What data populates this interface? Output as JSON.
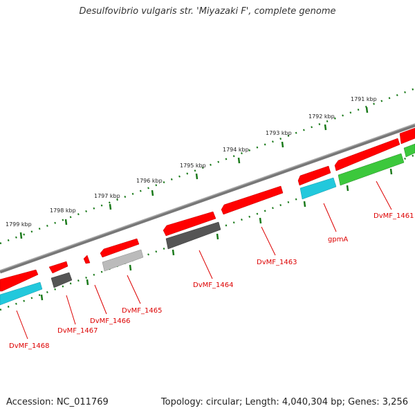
{
  "title": "Desulfovibrio vulgaris str. 'Miyazaki F', complete genome",
  "footer": {
    "accession": "Accession: NC_011769",
    "summary": "Topology: circular; Length: 4,040,304 bp; Genes: 3,256"
  },
  "ruler_labels": [
    "1799 kbp",
    "1798 kbp",
    "1797 kbp",
    "1796 kbp",
    "1795 kbp",
    "1794 kbp",
    "1793 kbp",
    "1792 kbp",
    "1791 kbp"
  ],
  "gene_labels": [
    "DvMF_1468",
    "DvMF_1467",
    "DvMF_1466",
    "DvMF_1465",
    "DvMF_1464",
    "DvMF_1463",
    "gpmA",
    "DvMF_1461"
  ],
  "colors": {
    "backbone": "#808080",
    "forward_gene": "#ff0000",
    "label": "#dd0000",
    "ticks": "#1a7a1a",
    "cyan": "#22c8dc",
    "green": "#3cc83c",
    "dark_gray": "#555555",
    "light_gray": "#bbbbbb"
  }
}
